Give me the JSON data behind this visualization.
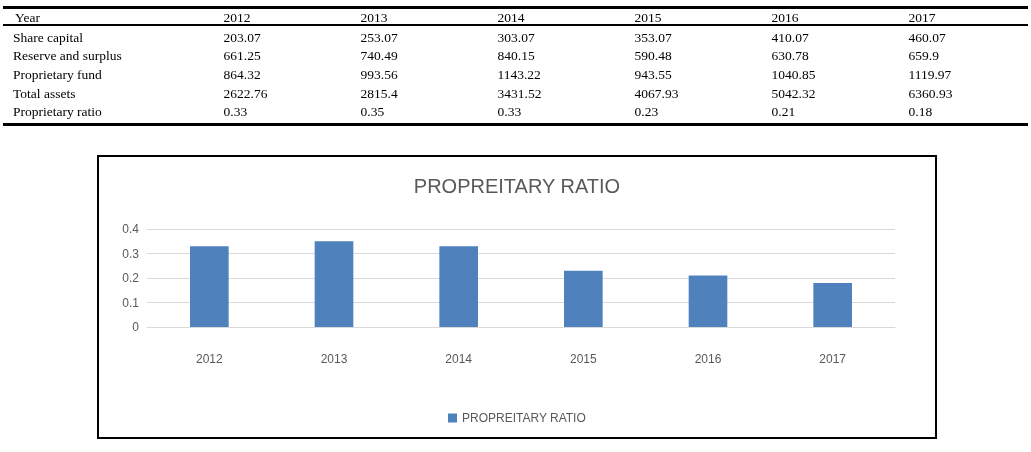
{
  "chart_data": [
    {
      "type": "heatmap",
      "xlabel": "Year",
      "categories": [
        "2012",
        "2013",
        "2014",
        "2015",
        "2016",
        "2017"
      ],
      "y_categories": [
        "Share capital",
        "Reserve and surplus",
        "Proprietary fund",
        "Total assets",
        "Proprietary ratio"
      ],
      "cells": [
        [
          203.07,
          253.07,
          303.07,
          353.07,
          410.07,
          460.07
        ],
        [
          661.25,
          740.49,
          840.15,
          590.48,
          630.78,
          659.9
        ],
        [
          864.32,
          993.56,
          1143.22,
          943.55,
          1040.85,
          1119.97
        ],
        [
          2622.76,
          2815.4,
          3431.52,
          4067.93,
          5042.32,
          6360.93
        ],
        [
          0.33,
          0.35,
          0.33,
          0.23,
          0.21,
          0.18
        ]
      ],
      "data_labels": true
    },
    {
      "type": "bar",
      "title": "PROPREITARY RATIO",
      "categories": [
        "2012",
        "2013",
        "2014",
        "2015",
        "2016",
        "2017"
      ],
      "series": [
        {
          "name": "PROPREITARY RATIO",
          "color": "#4f81bd",
          "values": [
            0.33,
            0.35,
            0.33,
            0.23,
            0.21,
            0.18
          ]
        }
      ],
      "ylim": [
        0,
        0.4
      ],
      "yticks": [
        0,
        0.1,
        0.2,
        0.3,
        0.4
      ],
      "grid": "y",
      "legend": "bottom"
    }
  ]
}
